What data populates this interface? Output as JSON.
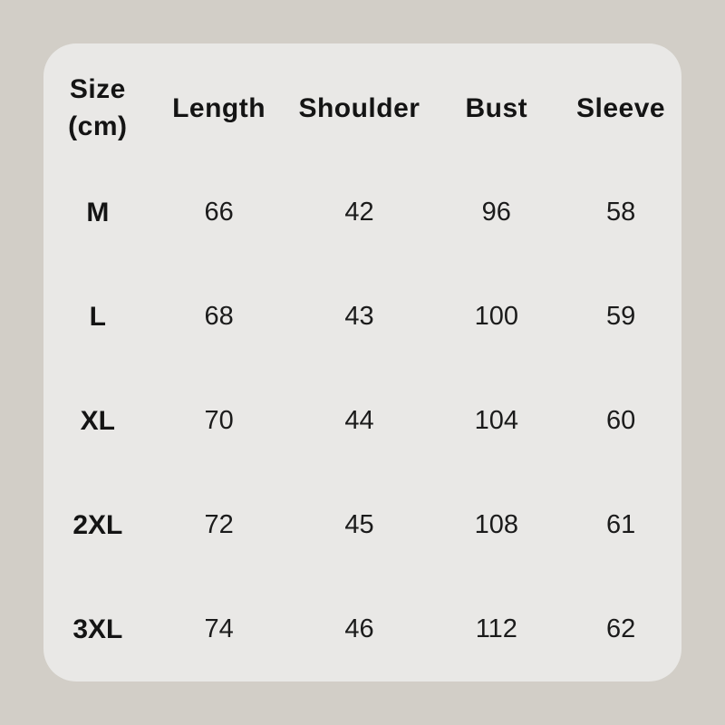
{
  "colors": {
    "page_background": "#d2cec7",
    "card_background": "#e9e8e6",
    "text": "#141414"
  },
  "table": {
    "header": {
      "size_line1": "Size",
      "size_line2": "(cm)",
      "columns": [
        "Length",
        "Shoulder",
        "Bust",
        "Sleeve"
      ]
    },
    "rows": [
      {
        "size": "M",
        "values": [
          "66",
          "42",
          "96",
          "58"
        ]
      },
      {
        "size": "L",
        "values": [
          "68",
          "43",
          "100",
          "59"
        ]
      },
      {
        "size": "XL",
        "values": [
          "70",
          "44",
          "104",
          "60"
        ]
      },
      {
        "size": "2XL",
        "values": [
          "72",
          "45",
          "108",
          "61"
        ]
      },
      {
        "size": "3XL",
        "values": [
          "74",
          "46",
          "112",
          "62"
        ]
      }
    ]
  },
  "chart_data": {
    "type": "table",
    "title": "Size (cm)",
    "columns": [
      "Size (cm)",
      "Length",
      "Shoulder",
      "Bust",
      "Sleeve"
    ],
    "rows": [
      [
        "M",
        66,
        42,
        96,
        58
      ],
      [
        "L",
        68,
        43,
        100,
        59
      ],
      [
        "XL",
        70,
        44,
        104,
        60
      ],
      [
        "2XL",
        72,
        45,
        108,
        61
      ],
      [
        "3XL",
        74,
        46,
        112,
        62
      ]
    ]
  }
}
